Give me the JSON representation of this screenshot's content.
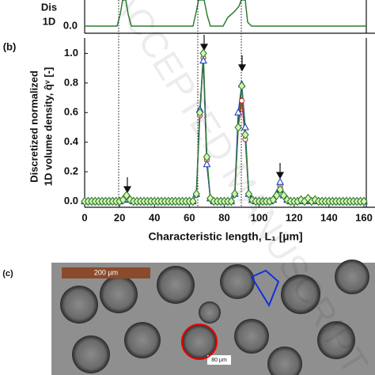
{
  "panel_a": {
    "y_label_lines": [
      "Dis",
      "1D"
    ],
    "ytick": "0.0"
  },
  "chart_data": {
    "type": "line",
    "panel_label": "(b)",
    "y_label_lines": [
      "Discretized normalized",
      "1D volume density, q̂ᵛ [-]"
    ],
    "x_label": "Characteristic length, L₁ [µm]",
    "x": [
      0,
      2,
      4,
      6,
      8,
      10,
      12,
      14,
      16,
      18,
      20,
      22,
      24,
      26,
      28,
      30,
      32,
      34,
      36,
      38,
      40,
      42,
      44,
      46,
      48,
      50,
      52,
      54,
      56,
      58,
      60,
      62,
      64,
      66,
      68,
      70,
      72,
      74,
      76,
      78,
      80,
      82,
      84,
      86,
      88,
      90,
      92,
      94,
      96,
      98,
      100,
      102,
      104,
      106,
      108,
      110,
      112,
      114,
      116,
      118,
      120,
      122,
      124,
      126,
      128,
      130,
      132,
      134,
      136,
      138,
      140,
      142,
      144,
      146,
      148,
      150,
      152,
      154,
      156,
      158,
      160
    ],
    "series": [
      {
        "color": "#2e7d32",
        "marker": "diamond",
        "values": [
          0,
          0,
          0,
          0,
          0,
          0,
          0,
          0,
          0,
          0,
          0,
          0.01,
          0.04,
          0.01,
          0,
          0,
          0,
          0,
          0,
          0,
          0,
          0,
          0,
          0,
          0,
          0,
          0,
          0,
          0,
          0,
          0,
          0,
          0.05,
          0.6,
          1.0,
          0.3,
          0.02,
          0,
          0,
          0,
          0,
          0,
          0,
          0.05,
          0.5,
          0.78,
          0.45,
          0.05,
          0.01,
          0,
          0,
          0,
          0,
          0,
          0.01,
          0.04,
          0.08,
          0.04,
          0.01,
          0,
          0,
          0,
          0.01,
          0,
          0.02,
          0,
          0.01,
          0,
          0,
          0,
          0,
          0,
          0,
          0,
          0,
          0,
          0,
          0,
          0,
          0,
          0
        ]
      },
      {
        "color": "#1f3fbf",
        "marker": "triangle",
        "values": [
          0,
          0,
          0,
          0,
          0,
          0,
          0,
          0,
          0,
          0,
          0,
          0.01,
          0.04,
          0.01,
          0,
          0,
          0,
          0,
          0,
          0,
          0,
          0,
          0,
          0,
          0,
          0,
          0,
          0,
          0,
          0,
          0,
          0,
          0.05,
          0.62,
          0.95,
          0.25,
          0.02,
          0,
          0,
          0,
          0,
          0,
          0,
          0.05,
          0.6,
          0.79,
          0.5,
          0.05,
          0.01,
          0,
          0,
          0,
          0,
          0,
          0.01,
          0.05,
          0.13,
          0.04,
          0.01,
          0,
          0,
          0,
          0.01,
          0,
          0.02,
          0,
          0.01,
          0,
          0,
          0,
          0,
          0,
          0,
          0,
          0,
          0,
          0,
          0,
          0,
          0,
          0
        ]
      },
      {
        "color": "#c62828",
        "marker": "circle",
        "values": [
          0,
          0,
          0,
          0,
          0,
          0,
          0,
          0,
          0,
          0,
          0,
          0.01,
          0.04,
          0.01,
          0,
          0,
          0,
          0,
          0,
          0,
          0,
          0,
          0,
          0,
          0,
          0,
          0,
          0,
          0,
          0,
          0,
          0,
          0.05,
          0.58,
          0.97,
          0.28,
          0.02,
          0,
          0,
          0,
          0,
          0,
          0,
          0.05,
          0.5,
          0.68,
          0.42,
          0.05,
          0.01,
          0,
          0,
          0,
          0,
          0,
          0.01,
          0.04,
          0.1,
          0.04,
          0.01,
          0,
          0,
          0,
          0.01,
          0,
          0.02,
          0,
          0.01,
          0,
          0,
          0,
          0,
          0,
          0,
          0,
          0,
          0,
          0,
          0,
          0,
          0,
          0
        ]
      }
    ],
    "xlim": [
      0,
      160
    ],
    "ylim": [
      -0.04,
      1.04
    ],
    "xticks": [
      0,
      20,
      40,
      60,
      80,
      100,
      120,
      140,
      160
    ],
    "yticks": [
      {
        "value": 0,
        "label": "0.0"
      },
      {
        "value": 0.2,
        "label": "0.2"
      },
      {
        "value": 0.4,
        "label": "0.4"
      },
      {
        "value": 0.6,
        "label": "0.6"
      },
      {
        "value": 0.8,
        "label": "0.8"
      },
      {
        "value": 1.0,
        "label": "1.0"
      }
    ]
  },
  "panel_c": {
    "label": "(c)",
    "scale_bar_1": "200 µm",
    "scale_bar_2": "80 µm"
  },
  "watermark": "ACCEPTED MANUSCRIPT"
}
